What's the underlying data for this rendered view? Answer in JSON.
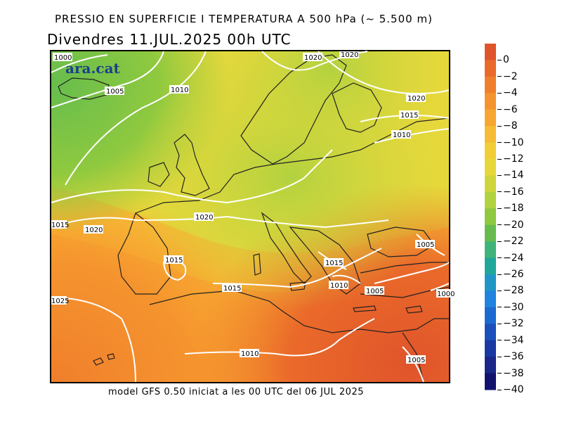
{
  "title_line1": "PRESSIO EN SUPERFICIE I TEMPERATURA A 500 hPa (~ 5.500 m)",
  "title_line2": "Divendres  11.JUL.2025 00h UTC",
  "footer": "model GFS 0.50 iniciat a les 00 UTC del 06 JUL 2025",
  "logo": "ara.cat",
  "colorbar": {
    "labels": [
      "0",
      "−2",
      "−4",
      "−6",
      "−8",
      "−10",
      "−12",
      "−14",
      "−16",
      "−18",
      "−20",
      "−22",
      "−24",
      "−26",
      "−28",
      "−30",
      "−32",
      "−34",
      "−36",
      "−38",
      "−40"
    ],
    "colors": [
      "#e0542b",
      "#ea6a2a",
      "#f07f2c",
      "#f5942e",
      "#f7a731",
      "#f6bc35",
      "#f1cd38",
      "#e6d83b",
      "#cfd63d",
      "#b2d23f",
      "#8fc93f",
      "#66bd4d",
      "#3fb37a",
      "#1fa89a",
      "#2096c6",
      "#1f83df",
      "#1b6ad2",
      "#1a4fbc",
      "#1a38a4",
      "#1a2688",
      "#12126e"
    ]
  },
  "isobars": [
    {
      "label": "1000",
      "icon": "isobar-label"
    },
    {
      "label": "1005"
    },
    {
      "label": "1010"
    },
    {
      "label": "1020"
    },
    {
      "label": "1020"
    },
    {
      "label": "1020"
    },
    {
      "label": "1015"
    },
    {
      "label": "1010"
    },
    {
      "label": "1015"
    },
    {
      "label": "1020"
    },
    {
      "label": "1020"
    },
    {
      "label": "1015"
    },
    {
      "label": "1015"
    },
    {
      "label": "1015"
    },
    {
      "label": "1010"
    },
    {
      "label": "1005"
    },
    {
      "label": "1005"
    },
    {
      "label": "1025"
    },
    {
      "label": "1010"
    },
    {
      "label": "1005"
    },
    {
      "label": "1000"
    }
  ]
}
